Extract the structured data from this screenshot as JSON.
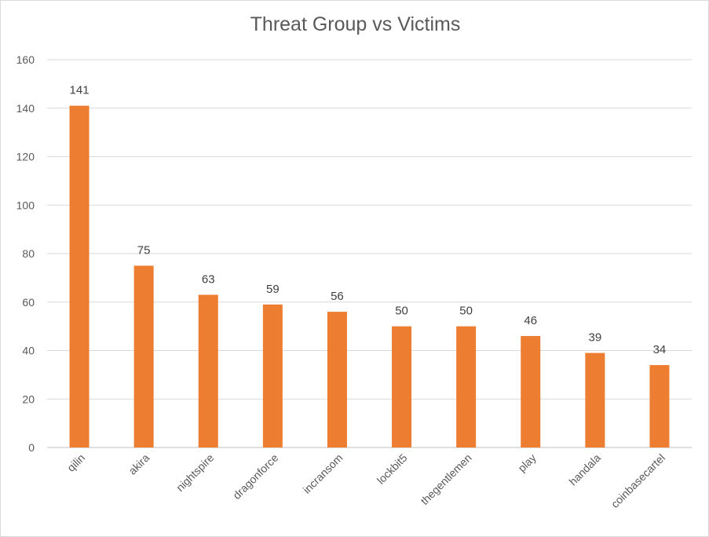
{
  "chart_data": {
    "type": "bar",
    "title": "Threat Group vs Victims",
    "xlabel": "",
    "ylabel": "",
    "ylim": [
      0,
      160
    ],
    "yticks": [
      0,
      20,
      40,
      60,
      80,
      100,
      120,
      140,
      160
    ],
    "grid": true,
    "legend": "none",
    "categories": [
      "qilin",
      "akira",
      "nightspire",
      "dragonforce",
      "incransom",
      "lockbit5",
      "thegentlemen",
      "play",
      "handala",
      "coinbasecartel"
    ],
    "values": [
      141,
      75,
      63,
      59,
      56,
      50,
      50,
      46,
      39,
      34
    ],
    "bar_color": "#ed7d31",
    "grid_color": "#d9d9d9",
    "text_color": "#595959"
  }
}
